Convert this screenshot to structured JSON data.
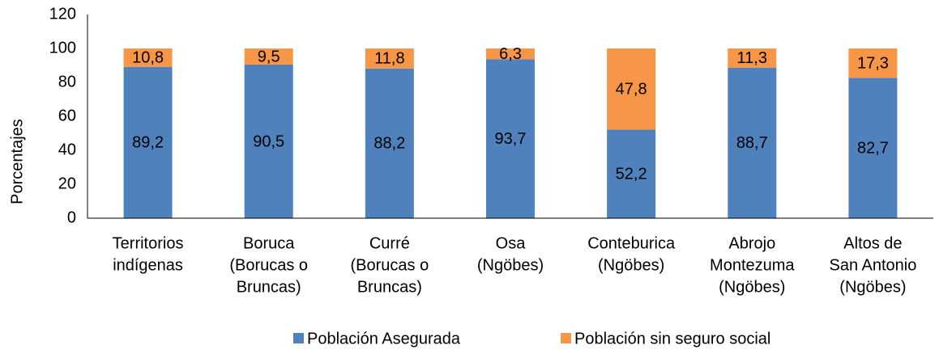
{
  "chart_data": {
    "type": "stacked_bar",
    "ylabel": "Porcentajes",
    "categories": [
      [
        "Territorios",
        "indígenas"
      ],
      [
        "Boruca",
        "(Borucas o",
        "Bruncas)"
      ],
      [
        "Curré",
        "(Borucas o",
        "Bruncas)"
      ],
      [
        "Osa",
        "(Ngöbes)"
      ],
      [
        "Conteburica",
        "(Ngöbes)"
      ],
      [
        "Abrojo",
        "Montezuma",
        "(Ngöbes)"
      ],
      [
        "Altos de",
        "San Antonio",
        "(Ngöbes)"
      ]
    ],
    "series": [
      {
        "name": "Población Asegurada",
        "color": "#4f81bd",
        "values": [
          89.2,
          90.5,
          88.2,
          93.7,
          52.2,
          88.7,
          82.7
        ],
        "value_labels": [
          "89,2",
          "90,5",
          "88,2",
          "93,7",
          "52,2",
          "88,7",
          "82,7"
        ]
      },
      {
        "name": "Población sin seguro social",
        "color": "#f79646",
        "values": [
          10.8,
          9.5,
          11.8,
          6.3,
          47.8,
          11.3,
          17.3
        ],
        "value_labels": [
          "10,8",
          "9,5",
          "11,8",
          "6,3",
          "47,8",
          "11,3",
          "17,3"
        ]
      }
    ],
    "ylim": [
      0,
      120
    ],
    "yticks": [
      0,
      20,
      40,
      60,
      80,
      100,
      120
    ],
    "grid": false,
    "legend": "bottom"
  }
}
